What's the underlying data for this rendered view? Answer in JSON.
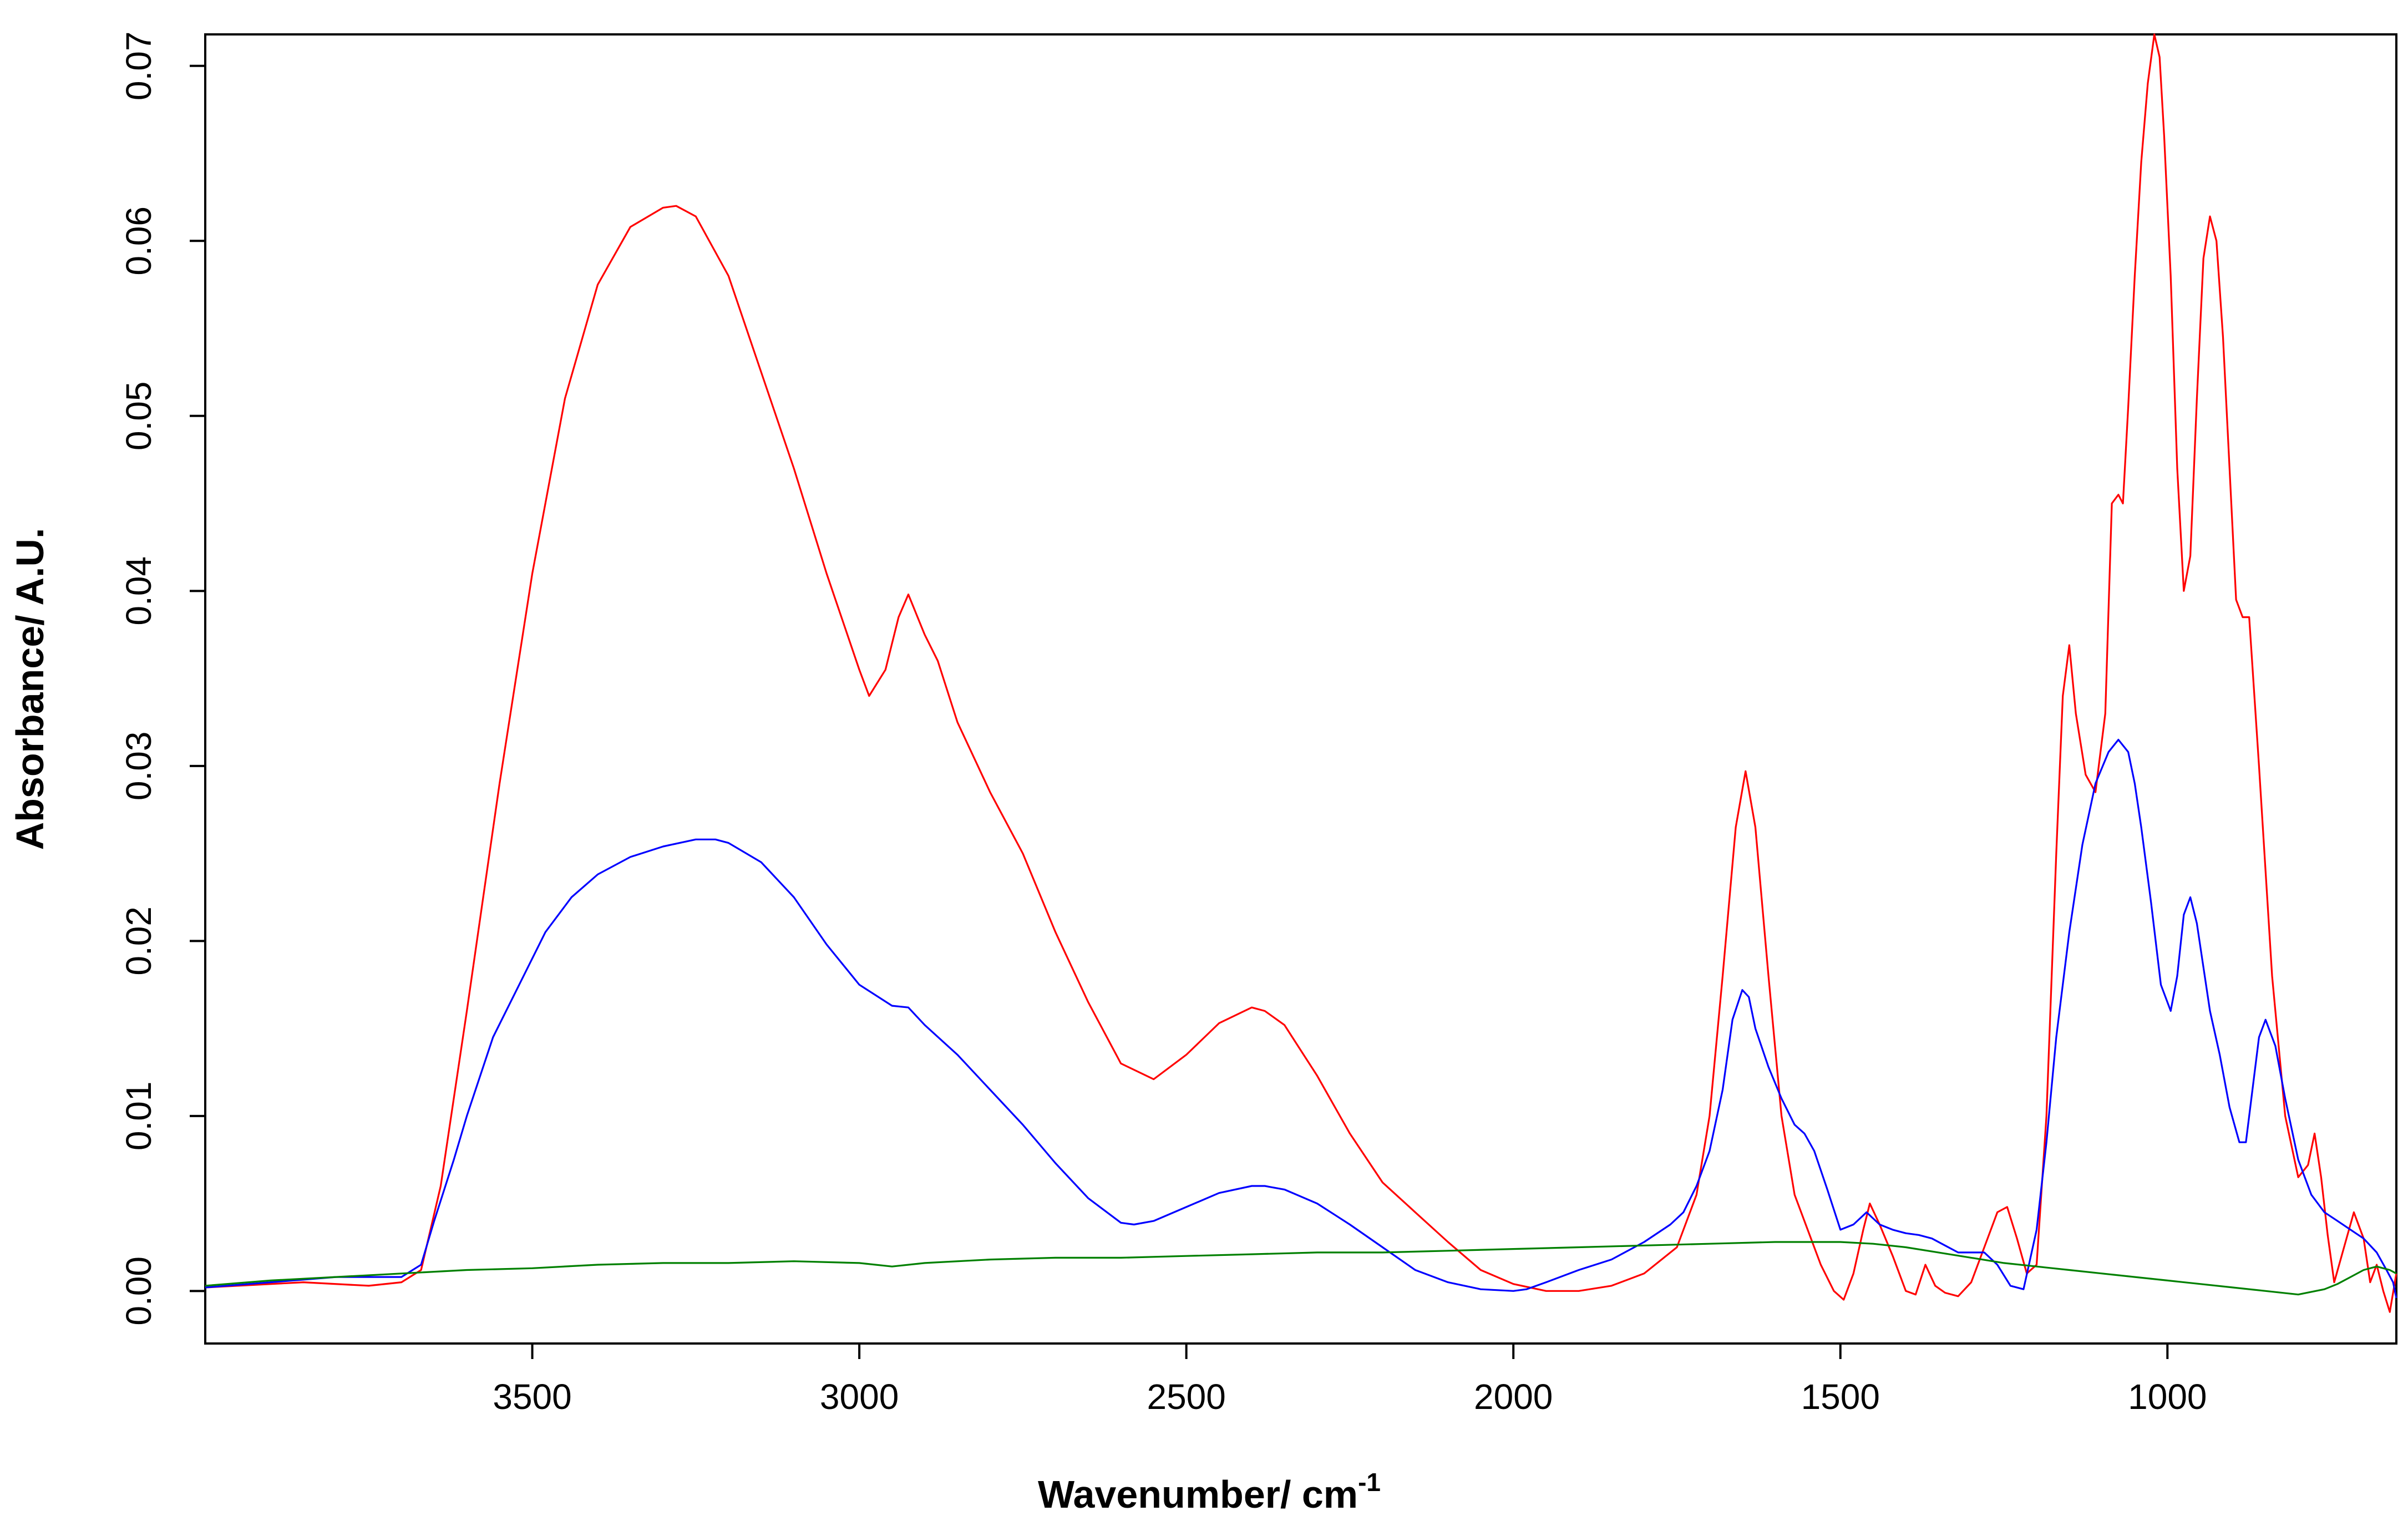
{
  "chart_data": {
    "type": "line",
    "title": "",
    "xlabel": "Wavenumber/ cm",
    "xlabel_sup": "-1",
    "ylabel": "Absorbance/ A.U.",
    "xlim": [
      4000,
      650
    ],
    "ylim": [
      -0.003,
      0.0718
    ],
    "x_reversed": true,
    "grid": false,
    "legend": "none",
    "xticks": [
      3500,
      3000,
      2500,
      2000,
      1500,
      1000
    ],
    "xtick_labels": [
      "3500",
      "3000",
      "2500",
      "2000",
      "1500",
      "1000"
    ],
    "yticks": [
      0.0,
      0.01,
      0.02,
      0.03,
      0.04,
      0.05,
      0.06,
      0.07
    ],
    "ytick_labels": [
      "0.00",
      "0.01",
      "0.02",
      "0.03",
      "0.04",
      "0.05",
      "0.06",
      "0.07"
    ],
    "series": [
      {
        "color": "#ff0000",
        "x": [
          4000,
          3850,
          3750,
          3700,
          3670,
          3640,
          3600,
          3550,
          3500,
          3450,
          3400,
          3350,
          3300,
          3280,
          3250,
          3200,
          3150,
          3100,
          3050,
          3000,
          2985,
          2960,
          2940,
          2925,
          2900,
          2880,
          2850,
          2800,
          2750,
          2700,
          2650,
          2600,
          2550,
          2500,
          2450,
          2400,
          2380,
          2350,
          2300,
          2250,
          2200,
          2150,
          2100,
          2050,
          2000,
          1950,
          1900,
          1850,
          1800,
          1750,
          1720,
          1700,
          1680,
          1660,
          1645,
          1630,
          1610,
          1590,
          1570,
          1550,
          1530,
          1510,
          1495,
          1480,
          1465,
          1455,
          1440,
          1420,
          1400,
          1385,
          1370,
          1355,
          1340,
          1320,
          1300,
          1280,
          1260,
          1245,
          1230,
          1215,
          1200,
          1185,
          1170,
          1160,
          1150,
          1140,
          1125,
          1110,
          1095,
          1085,
          1075,
          1068,
          1060,
          1050,
          1040,
          1030,
          1020,
          1012,
          1005,
          995,
          985,
          975,
          965,
          955,
          945,
          935,
          925,
          915,
          905,
          895,
          885,
          875,
          860,
          840,
          820,
          800,
          785,
          775,
          765,
          755,
          745,
          730,
          715,
          700,
          690,
          680,
          670,
          660,
          650
        ],
        "y": [
          0.0002,
          0.0005,
          0.0003,
          0.0005,
          0.0012,
          0.006,
          0.016,
          0.029,
          0.041,
          0.051,
          0.0575,
          0.0608,
          0.0619,
          0.062,
          0.0614,
          0.058,
          0.0525,
          0.047,
          0.041,
          0.0355,
          0.034,
          0.0355,
          0.0385,
          0.0398,
          0.0375,
          0.036,
          0.0325,
          0.0285,
          0.025,
          0.0205,
          0.0165,
          0.013,
          0.0121,
          0.0135,
          0.0153,
          0.0162,
          0.016,
          0.0152,
          0.0123,
          0.009,
          0.0062,
          0.0045,
          0.0028,
          0.0012,
          0.0004,
          0.0,
          0.0,
          0.0003,
          0.001,
          0.0025,
          0.0055,
          0.01,
          0.018,
          0.0265,
          0.0297,
          0.0265,
          0.018,
          0.01,
          0.0055,
          0.0035,
          0.0015,
          0.0,
          -0.0005,
          0.001,
          0.0035,
          0.005,
          0.0038,
          0.002,
          0.0,
          -0.0002,
          0.0015,
          0.0003,
          -0.0001,
          -0.0003,
          0.0005,
          0.0025,
          0.0045,
          0.0048,
          0.003,
          0.001,
          0.0015,
          0.01,
          0.025,
          0.034,
          0.0369,
          0.033,
          0.0295,
          0.0285,
          0.033,
          0.045,
          0.0455,
          0.045,
          0.0505,
          0.058,
          0.0645,
          0.069,
          0.0718,
          0.0705,
          0.066,
          0.058,
          0.047,
          0.04,
          0.042,
          0.051,
          0.059,
          0.0614,
          0.06,
          0.0545,
          0.047,
          0.0395,
          0.0385,
          0.0385,
          0.03,
          0.018,
          0.01,
          0.0065,
          0.0072,
          0.009,
          0.0065,
          0.0032,
          0.0005,
          0.0025,
          0.0045,
          0.003,
          0.0005,
          0.0015,
          0.0,
          -0.0012,
          0.001
        ]
      },
      {
        "color": "#0000ff",
        "x": [
          4000,
          3900,
          3800,
          3700,
          3670,
          3650,
          3620,
          3600,
          3560,
          3520,
          3480,
          3440,
          3400,
          3350,
          3300,
          3250,
          3220,
          3200,
          3150,
          3100,
          3050,
          3000,
          2950,
          2925,
          2900,
          2850,
          2800,
          2750,
          2700,
          2650,
          2600,
          2580,
          2550,
          2500,
          2450,
          2400,
          2380,
          2350,
          2300,
          2250,
          2200,
          2150,
          2100,
          2050,
          2000,
          1980,
          1950,
          1900,
          1850,
          1800,
          1760,
          1740,
          1720,
          1700,
          1680,
          1665,
          1650,
          1640,
          1630,
          1610,
          1590,
          1570,
          1555,
          1540,
          1520,
          1500,
          1480,
          1460,
          1440,
          1420,
          1400,
          1380,
          1360,
          1340,
          1320,
          1300,
          1280,
          1260,
          1240,
          1220,
          1200,
          1185,
          1170,
          1150,
          1130,
          1110,
          1090,
          1075,
          1060,
          1050,
          1040,
          1025,
          1010,
          995,
          985,
          975,
          965,
          955,
          945,
          935,
          920,
          905,
          890,
          880,
          870,
          860,
          850,
          835,
          820,
          800,
          780,
          760,
          740,
          720,
          700,
          680,
          665,
          655,
          650
        ],
        "y": [
          0.0002,
          0.0005,
          0.0008,
          0.0008,
          0.0015,
          0.004,
          0.0075,
          0.01,
          0.0145,
          0.0175,
          0.0205,
          0.0225,
          0.0238,
          0.0248,
          0.0254,
          0.0258,
          0.0258,
          0.0256,
          0.0245,
          0.0225,
          0.0198,
          0.0175,
          0.0163,
          0.0162,
          0.0152,
          0.0135,
          0.0115,
          0.0095,
          0.0073,
          0.0053,
          0.0039,
          0.0038,
          0.004,
          0.0048,
          0.0056,
          0.006,
          0.006,
          0.0058,
          0.005,
          0.0038,
          0.0025,
          0.0012,
          0.0005,
          0.0001,
          0.0,
          0.0001,
          0.0005,
          0.0012,
          0.0018,
          0.0028,
          0.0038,
          0.0045,
          0.006,
          0.008,
          0.0115,
          0.0155,
          0.0172,
          0.0168,
          0.015,
          0.0128,
          0.011,
          0.0095,
          0.009,
          0.008,
          0.0058,
          0.0035,
          0.0038,
          0.0045,
          0.0038,
          0.0035,
          0.0033,
          0.0032,
          0.003,
          0.0026,
          0.0022,
          0.0022,
          0.0022,
          0.0015,
          0.0003,
          0.0001,
          0.0035,
          0.0085,
          0.0145,
          0.0205,
          0.0255,
          0.029,
          0.0308,
          0.0315,
          0.0308,
          0.029,
          0.0265,
          0.0222,
          0.0175,
          0.016,
          0.018,
          0.0215,
          0.0225,
          0.021,
          0.0185,
          0.016,
          0.0135,
          0.0105,
          0.0085,
          0.0085,
          0.0115,
          0.0145,
          0.0155,
          0.014,
          0.011,
          0.0075,
          0.0055,
          0.0045,
          0.004,
          0.0035,
          0.003,
          0.0022,
          0.0012,
          0.0005,
          -0.0004
        ]
      },
      {
        "color": "#008000",
        "x": [
          4000,
          3900,
          3800,
          3700,
          3600,
          3500,
          3400,
          3300,
          3200,
          3100,
          3000,
          2950,
          2900,
          2800,
          2700,
          2600,
          2500,
          2400,
          2300,
          2200,
          2100,
          2000,
          1900,
          1800,
          1700,
          1600,
          1500,
          1450,
          1400,
          1350,
          1300,
          1250,
          1200,
          1150,
          1100,
          1050,
          1000,
          950,
          900,
          850,
          800,
          760,
          740,
          720,
          700,
          680,
          660,
          650
        ],
        "y": [
          0.0003,
          0.0006,
          0.0008,
          0.001,
          0.0012,
          0.0013,
          0.0015,
          0.0016,
          0.0016,
          0.0017,
          0.0016,
          0.0014,
          0.0016,
          0.0018,
          0.0019,
          0.0019,
          0.002,
          0.0021,
          0.0022,
          0.0022,
          0.0023,
          0.0024,
          0.0025,
          0.0026,
          0.0027,
          0.0028,
          0.0028,
          0.0027,
          0.0025,
          0.0022,
          0.0019,
          0.0016,
          0.0014,
          0.0012,
          0.001,
          0.0008,
          0.0006,
          0.0004,
          0.0002,
          0.0,
          -0.0002,
          0.0001,
          0.0004,
          0.0008,
          0.0012,
          0.0014,
          0.0012,
          0.001
        ]
      }
    ]
  }
}
